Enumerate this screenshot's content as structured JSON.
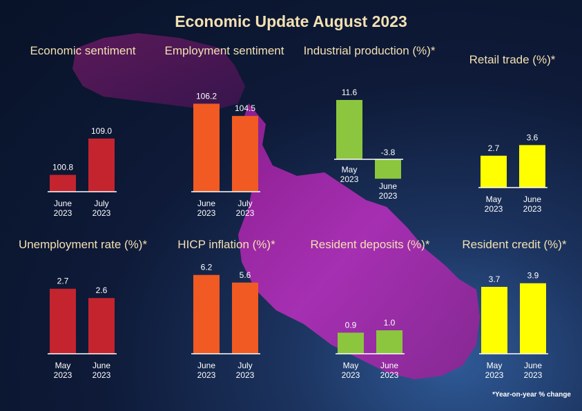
{
  "title": "Economic Update August 2023",
  "footnote": "*Year-on-year % change",
  "colors": {
    "red": "#c4242e",
    "orange": "#f15a22",
    "green": "#8cc63f",
    "yellow": "#ffff00",
    "title": "#f3e0b3",
    "axis": "#ffffff"
  },
  "chart_data": [
    {
      "type": "bar",
      "title": "Economic sentiment",
      "categories": [
        "June 2023",
        "July 2023"
      ],
      "values": [
        100.8,
        109.0
      ],
      "labels": [
        "100.8",
        "109.0"
      ],
      "color": "#c4242e",
      "ylim": [
        97,
        111
      ]
    },
    {
      "type": "bar",
      "title": "Employment sentiment",
      "categories": [
        "June 2023",
        "July 2023"
      ],
      "values": [
        106.2,
        104.5
      ],
      "labels": [
        "106.2",
        "104.5"
      ],
      "color": "#f15a22",
      "ylim": [
        94,
        107
      ]
    },
    {
      "type": "bar",
      "title": "Industrial production (%)*",
      "categories": [
        "May 2023",
        "June 2023"
      ],
      "values": [
        11.6,
        -3.8
      ],
      "labels": [
        "11.6",
        "-3.8"
      ],
      "color": "#8cc63f",
      "ylim": [
        -4,
        12
      ]
    },
    {
      "type": "bar",
      "title": "Retail trade (%)*",
      "categories": [
        "May 2023",
        "June 2023"
      ],
      "values": [
        2.7,
        3.6
      ],
      "labels": [
        "2.7",
        "3.6"
      ],
      "color": "#ffff00",
      "ylim": [
        0,
        4.5
      ]
    },
    {
      "type": "bar",
      "title": "Unemployment rate (%)*",
      "categories": [
        "May 2023",
        "June 2023"
      ],
      "values": [
        2.7,
        2.6
      ],
      "labels": [
        "2.7",
        "2.6"
      ],
      "color": "#c4242e",
      "ylim": [
        2,
        2.75
      ]
    },
    {
      "type": "bar",
      "title": "HICP inflation (%)*",
      "categories": [
        "June 2023",
        "July 2023"
      ],
      "values": [
        6.2,
        5.6
      ],
      "labels": [
        "6.2",
        "5.6"
      ],
      "color": "#f15a22",
      "ylim": [
        0,
        6.4
      ]
    },
    {
      "type": "bar",
      "title": "Resident deposits (%)*",
      "categories": [
        "May 2023",
        "June 2023"
      ],
      "values": [
        0.9,
        1.0
      ],
      "labels": [
        "0.9",
        "1.0"
      ],
      "color": "#8cc63f",
      "ylim": [
        0,
        2
      ]
    },
    {
      "type": "bar",
      "title": "Resident credit (%)*",
      "categories": [
        "May 2023",
        "June 2023"
      ],
      "values": [
        3.7,
        3.9
      ],
      "labels": [
        "3.7",
        "3.9"
      ],
      "color": "#ffff00",
      "ylim": [
        0,
        4.5
      ]
    }
  ]
}
